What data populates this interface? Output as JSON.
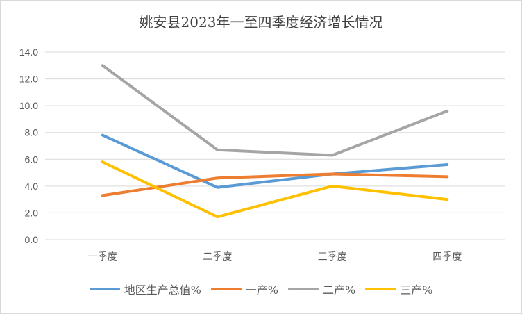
{
  "chart_data": {
    "type": "line",
    "title": "姚安县2023年一至四季度经济增长情况",
    "categories": [
      "一季度",
      "二季度",
      "三季度",
      "四季度"
    ],
    "ylim": [
      0,
      14
    ],
    "yticks": [
      "0.0",
      "2.0",
      "4.0",
      "6.0",
      "8.0",
      "10.0",
      "12.0",
      "14.0"
    ],
    "grid": true,
    "legend": "bottom",
    "series": [
      {
        "name": "地区生产总值%",
        "color": "#5b9bd5",
        "values": [
          7.8,
          3.9,
          4.9,
          5.6
        ]
      },
      {
        "name": "一产%",
        "color": "#ed7d31",
        "values": [
          3.3,
          4.6,
          4.9,
          4.7
        ]
      },
      {
        "name": "二产%",
        "color": "#a5a5a5",
        "values": [
          13.0,
          6.7,
          6.3,
          9.6
        ]
      },
      {
        "name": "三产%",
        "color": "#ffc000",
        "values": [
          5.8,
          1.7,
          4.0,
          3.0
        ]
      }
    ]
  }
}
